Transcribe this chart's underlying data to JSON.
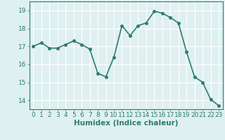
{
  "x": [
    0,
    1,
    2,
    3,
    4,
    5,
    6,
    7,
    8,
    9,
    10,
    11,
    12,
    13,
    14,
    15,
    16,
    17,
    18,
    19,
    20,
    21,
    22,
    23
  ],
  "y": [
    17.0,
    17.2,
    16.9,
    16.9,
    17.1,
    17.3,
    17.1,
    16.85,
    15.5,
    15.3,
    16.4,
    18.15,
    17.6,
    18.15,
    18.3,
    18.95,
    18.85,
    18.6,
    18.3,
    16.7,
    15.3,
    15.0,
    14.05,
    13.7
  ],
  "line_color": "#2d7d6e",
  "marker": "o",
  "markersize": 2.5,
  "linewidth": 1.2,
  "bg_color": "#dff0f0",
  "grid_color": "#ffffff",
  "xlabel": "Humidex (Indice chaleur)",
  "ylim": [
    13.5,
    19.5
  ],
  "yticks": [
    14,
    15,
    16,
    17,
    18,
    19
  ],
  "xticks": [
    0,
    1,
    2,
    3,
    4,
    5,
    6,
    7,
    8,
    9,
    10,
    11,
    12,
    13,
    14,
    15,
    16,
    17,
    18,
    19,
    20,
    21,
    22,
    23
  ],
  "xlabel_fontsize": 7.5,
  "tick_fontsize": 6.5,
  "spine_color": "#2d7d6e"
}
